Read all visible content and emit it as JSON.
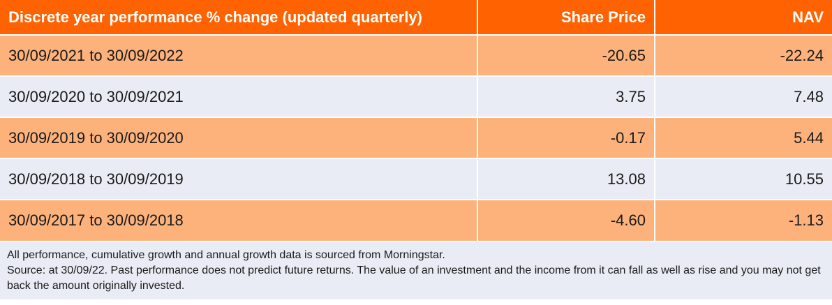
{
  "table": {
    "headers": {
      "period": "Discrete year performance % change (updated quarterly)",
      "share_price": "Share Price",
      "nav": "NAV"
    },
    "rows": [
      {
        "period": "30/09/2021 to 30/09/2022",
        "share_price": "-20.65",
        "nav": "-22.24"
      },
      {
        "period": "30/09/2020 to 30/09/2021",
        "share_price": "3.75",
        "nav": "7.48"
      },
      {
        "period": "30/09/2019 to 30/09/2020",
        "share_price": "-0.17",
        "nav": "5.44"
      },
      {
        "period": "30/09/2018 to 30/09/2019",
        "share_price": "13.08",
        "nav": "10.55"
      },
      {
        "period": "30/09/2017 to 30/09/2018",
        "share_price": "-4.60",
        "nav": "-1.13"
      }
    ]
  },
  "footnote": {
    "line1": "All performance, cumulative growth and annual growth data is sourced from Morningstar.",
    "line2": "Source: at 30/09/22. Past performance does not predict future returns. The value of an investment and the income from it can fall as well as rise and you may not get back the amount originally invested."
  },
  "colors": {
    "header_bg": "#ff6200",
    "row_highlight_bg": "#fdb27c",
    "row_plain_bg": "#e9ecf4"
  }
}
